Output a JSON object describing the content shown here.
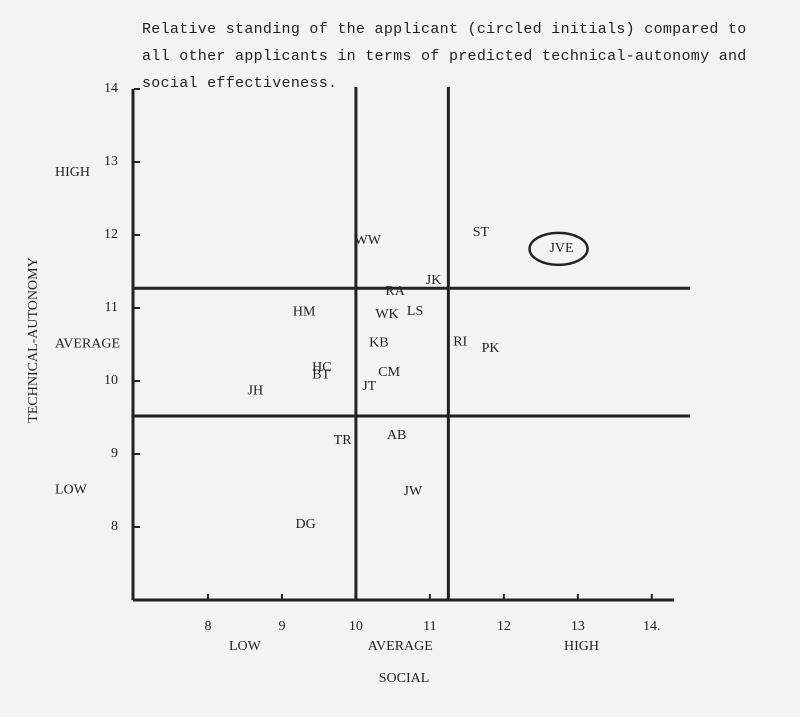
{
  "chart_data": {
    "type": "scatter",
    "title": "Relative standing of the applicant (circled initials) compared to all other applicants in terms of predicted technical-autonomy and social effectiveness.",
    "x_label": "SOCIAL",
    "y_label": "TECHNICAL-AUTONOMY",
    "labels": [
      "WW",
      "ST",
      "JVE",
      "JK",
      "RA",
      "HM",
      "WK",
      "LS",
      "KB",
      "RI",
      "PK",
      "HC",
      "BT",
      "CM",
      "JH",
      "JT",
      "TR",
      "AB",
      "JW",
      "DG"
    ],
    "x": [
      10.16,
      11.69,
      12.78,
      11.05,
      10.53,
      9.3,
      10.42,
      10.8,
      10.31,
      11.41,
      11.82,
      9.54,
      9.53,
      10.45,
      8.64,
      10.18,
      9.82,
      10.55,
      10.77,
      9.32
    ],
    "y": [
      11.92,
      12.03,
      11.81,
      11.37,
      11.22,
      10.94,
      10.91,
      10.95,
      10.52,
      10.53,
      10.44,
      10.18,
      10.08,
      10.11,
      9.86,
      9.92,
      9.18,
      9.25,
      8.48,
      8.03
    ],
    "highlight": 2,
    "xlim": [
      7,
      14.3
    ],
    "ylim": [
      7,
      14
    ],
    "xticks": [
      8,
      9,
      10,
      11,
      12,
      13,
      {
        "value": 14,
        "label": "14."
      }
    ],
    "yticks": [
      8,
      9,
      10,
      11,
      12,
      13,
      14
    ],
    "x_dividers": [
      10,
      11.25
    ],
    "y_dividers": [
      11.27,
      9.52
    ],
    "x_levels": [
      {
        "value": 8.5,
        "label": "LOW"
      },
      {
        "value": 10.6,
        "label": "AVERAGE"
      },
      {
        "value": 13.05,
        "label": "HIGH"
      }
    ],
    "y_levels": [
      {
        "value": 12.85,
        "label": "HIGH"
      },
      {
        "value": 10.5,
        "label": "AVERAGE"
      },
      {
        "value": 8.5,
        "label": "LOW"
      }
    ]
  }
}
